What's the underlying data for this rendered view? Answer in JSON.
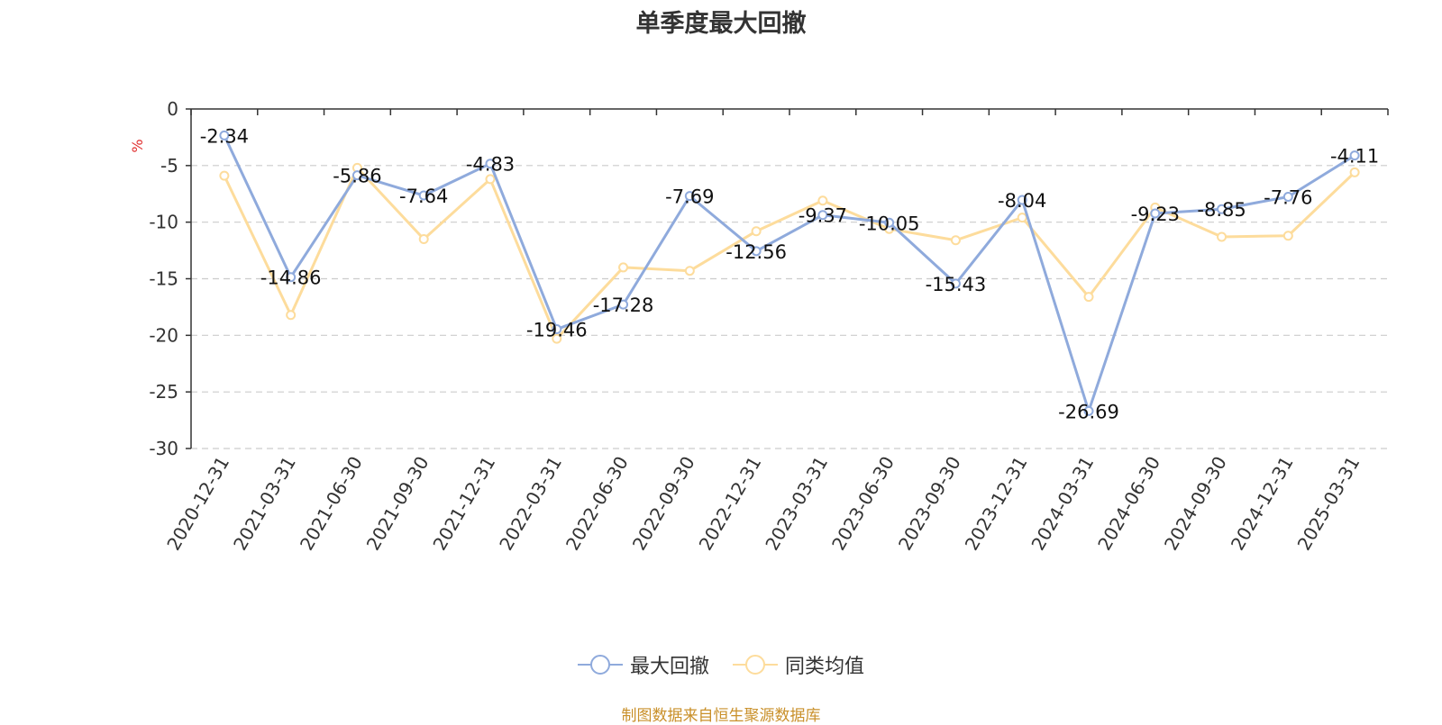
{
  "chart_data": {
    "type": "line",
    "title": "单季度最大回撤",
    "ylabel": "%",
    "ylim": [
      -30,
      0
    ],
    "yticks": [
      0,
      -5,
      -10,
      -15,
      -20,
      -25,
      -30
    ],
    "grid": true,
    "legend_position": "bottom",
    "categories": [
      "2020-12-31",
      "2021-03-31",
      "2021-06-30",
      "2021-09-30",
      "2021-12-31",
      "2022-03-31",
      "2022-06-30",
      "2022-09-30",
      "2022-12-31",
      "2023-03-31",
      "2023-06-30",
      "2023-09-30",
      "2023-12-31",
      "2024-03-31",
      "2024-06-30",
      "2024-09-30",
      "2024-12-31",
      "2025-03-31"
    ],
    "series": [
      {
        "name": "最大回撤",
        "color": "#8faadc",
        "values": [
          -2.34,
          -14.86,
          -5.86,
          -7.64,
          -4.83,
          -19.46,
          -17.28,
          -7.69,
          -12.56,
          -9.37,
          -10.05,
          -15.43,
          -8.04,
          -26.69,
          -9.23,
          -8.85,
          -7.76,
          -4.11
        ],
        "labels": [
          "-2.34",
          "-14.86",
          "-5.86",
          "-7.64",
          "-4.83",
          "-19.46",
          "-17.28",
          "-7.69",
          "-12.56",
          "-9.37",
          "-10.05",
          "-15.43",
          "-8.04",
          "-26.69",
          "-9.23",
          "-8.85",
          "-7.76",
          "-4.11"
        ]
      },
      {
        "name": "同类均值",
        "color": "#fddc9c",
        "values": [
          -5.9,
          -18.2,
          -5.2,
          -11.5,
          -6.2,
          -20.3,
          -14.0,
          -14.3,
          -10.8,
          -8.1,
          -10.6,
          -11.6,
          -9.6,
          -16.6,
          -8.7,
          -11.3,
          -11.2,
          -5.6
        ]
      }
    ]
  },
  "source": "制图数据来自恒生聚源数据库"
}
